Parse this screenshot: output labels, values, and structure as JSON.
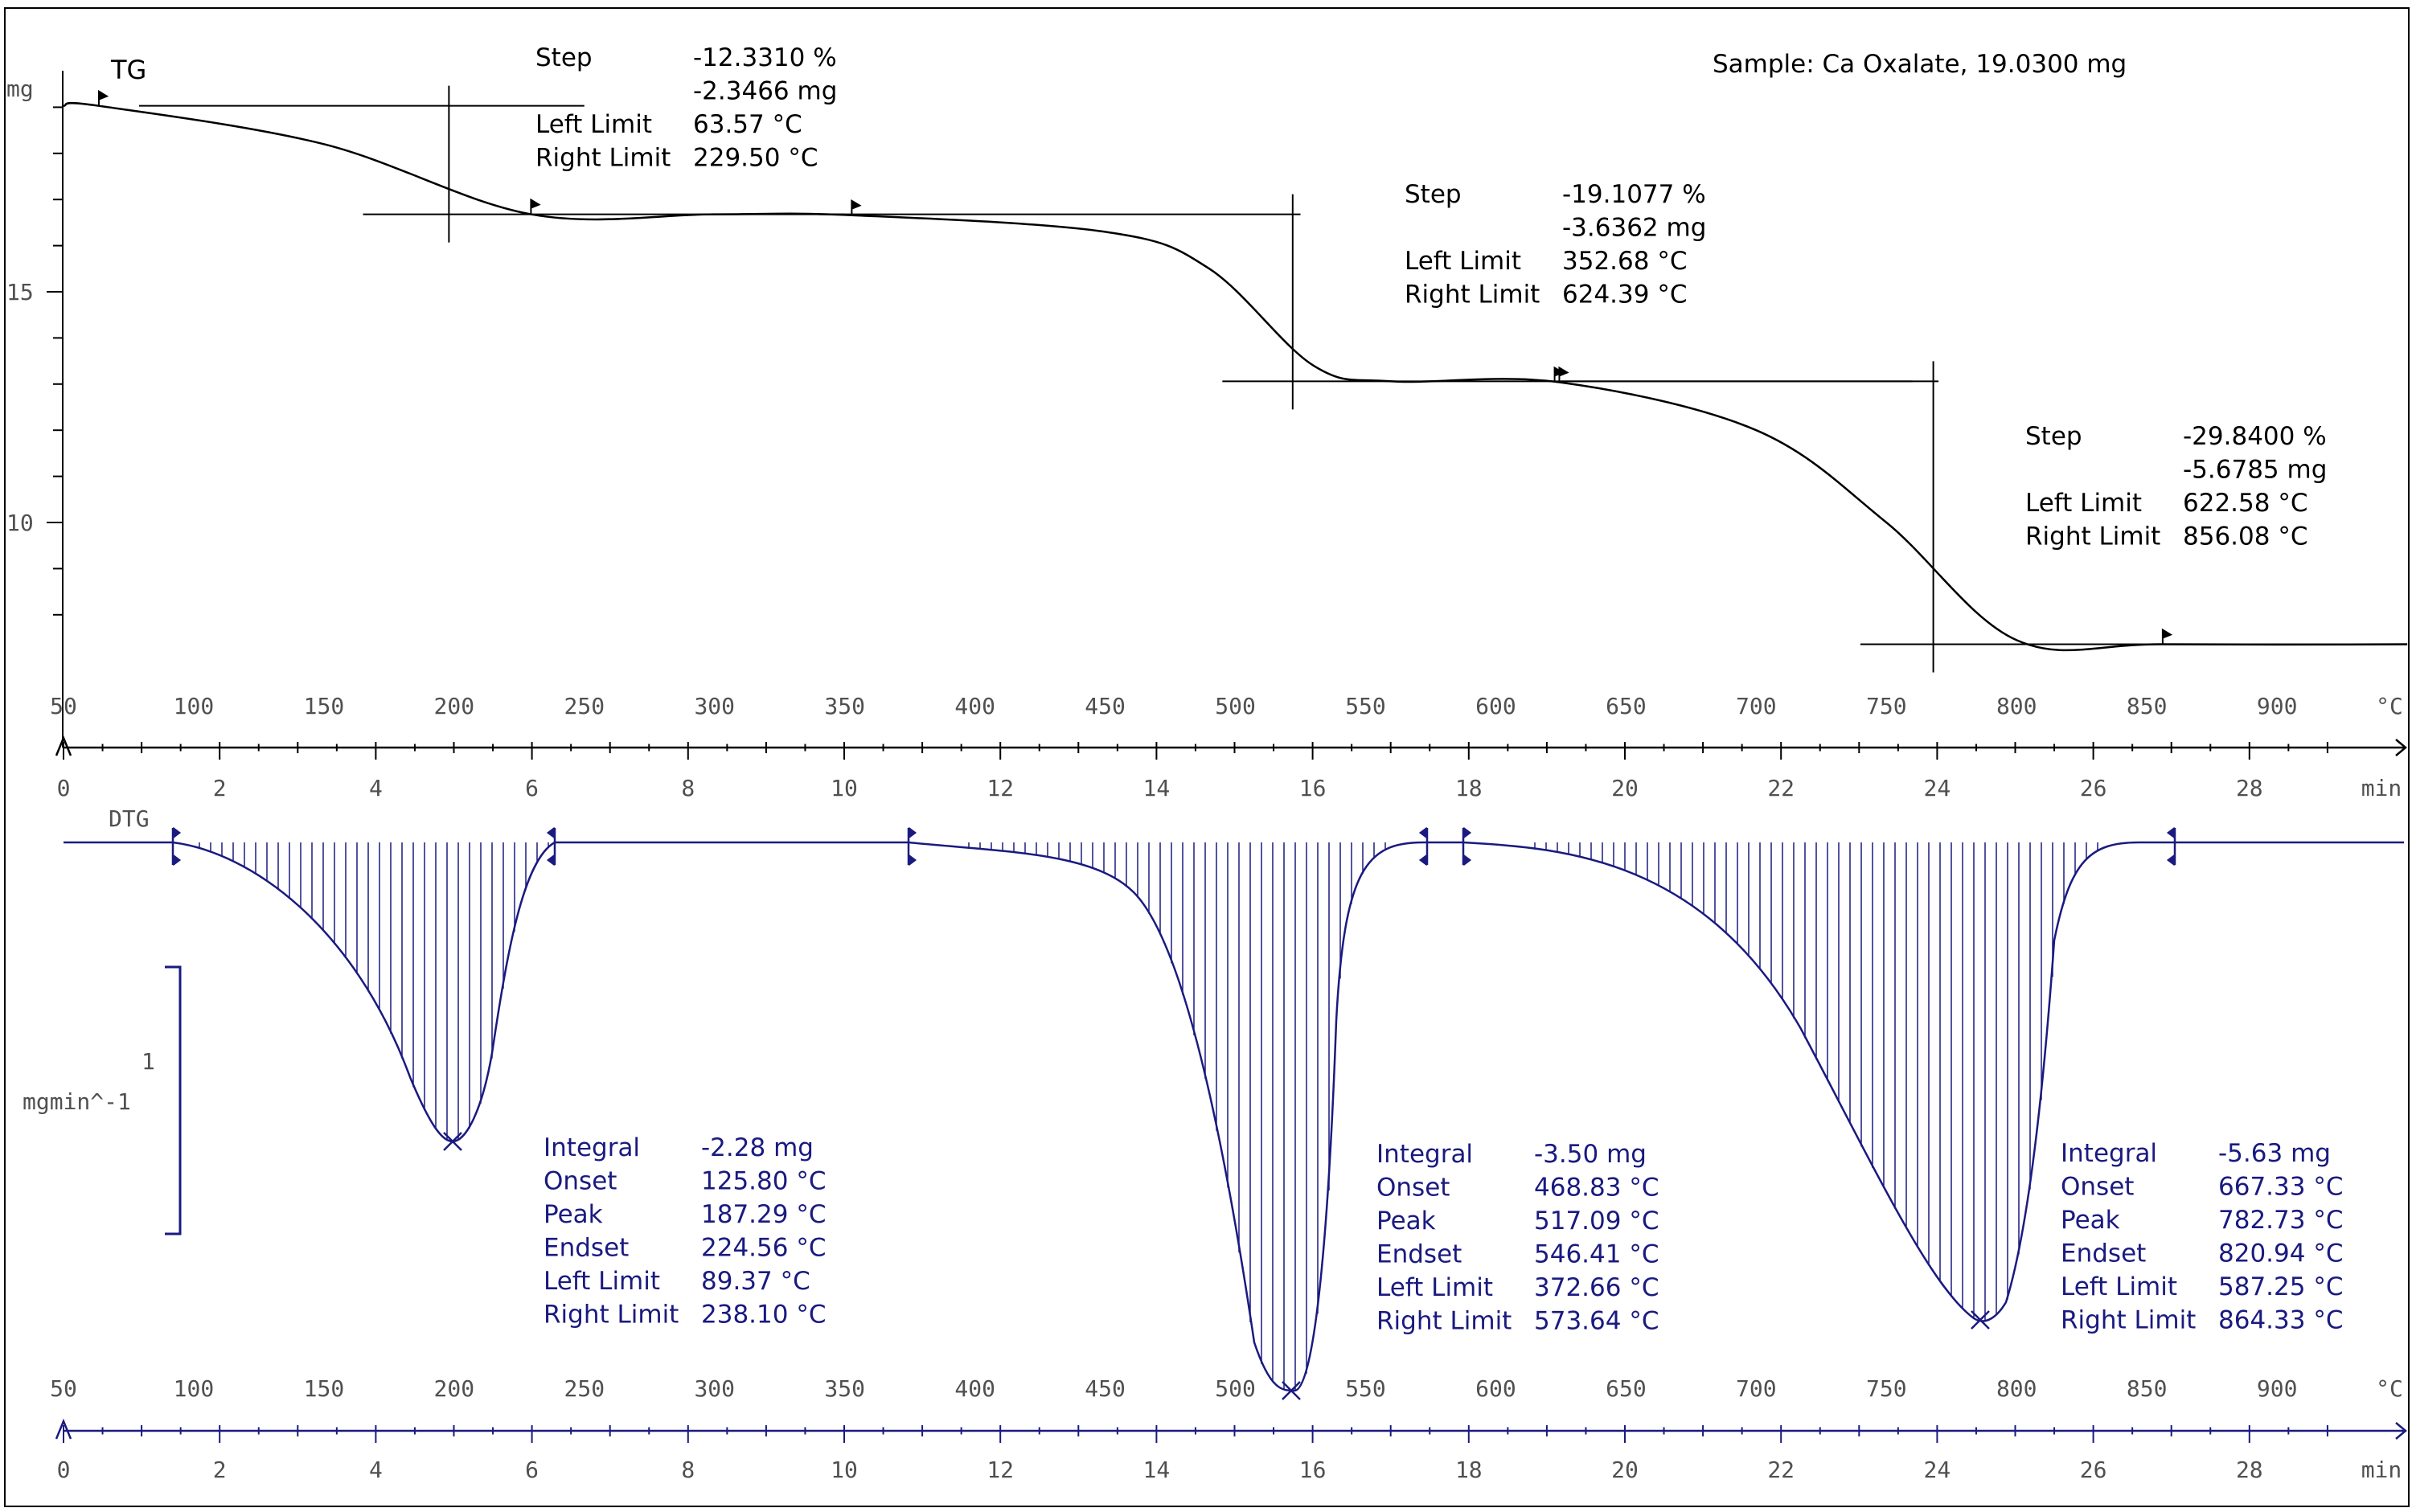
{
  "sample_label": "Sample: Ca Oxalate, 19.0300 mg",
  "tg": {
    "curve_label": "TG",
    "unit": "mg",
    "y_ticks": [
      "15",
      "10"
    ],
    "steps": [
      {
        "rows": [
          [
            "Step",
            "-12.3310 %"
          ],
          [
            "",
            "-2.3466 mg"
          ],
          [
            "Left Limit",
            "63.57 °C"
          ],
          [
            "Right Limit",
            "229.50 °C"
          ]
        ]
      },
      {
        "rows": [
          [
            "Step",
            "-19.1077 %"
          ],
          [
            "",
            "-3.6362 mg"
          ],
          [
            "Left Limit",
            "352.68 °C"
          ],
          [
            "Right Limit",
            "624.39 °C"
          ]
        ]
      },
      {
        "rows": [
          [
            "Step",
            "-29.8400 %"
          ],
          [
            "",
            "-5.6785 mg"
          ],
          [
            "Left Limit",
            "622.58 °C"
          ],
          [
            "Right Limit",
            "856.08 °C"
          ]
        ]
      }
    ]
  },
  "dtg": {
    "curve_label": "DTG",
    "scale_value": "1",
    "scale_unit": "mgmin^-1",
    "peaks": [
      {
        "rows": [
          [
            "Integral",
            "-2.28 mg"
          ],
          [
            "Onset",
            "125.80 °C"
          ],
          [
            "Peak",
            "187.29 °C"
          ],
          [
            "Endset",
            "224.56 °C"
          ],
          [
            "Left Limit",
            "89.37 °C"
          ],
          [
            "Right Limit",
            "238.10 °C"
          ]
        ]
      },
      {
        "rows": [
          [
            "Integral",
            "-3.50 mg"
          ],
          [
            "Onset",
            "468.83 °C"
          ],
          [
            "Peak",
            "517.09 °C"
          ],
          [
            "Endset",
            "546.41 °C"
          ],
          [
            "Left Limit",
            "372.66 °C"
          ],
          [
            "Right Limit",
            "573.64 °C"
          ]
        ]
      },
      {
        "rows": [
          [
            "Integral",
            "-5.63 mg"
          ],
          [
            "Onset",
            "667.33 °C"
          ],
          [
            "Peak",
            "782.73 °C"
          ],
          [
            "Endset",
            "820.94 °C"
          ],
          [
            "Left Limit",
            "587.25 °C"
          ],
          [
            "Right Limit",
            "864.33 °C"
          ]
        ]
      }
    ]
  },
  "axes": {
    "temp_ticks": [
      "50",
      "100",
      "150",
      "200",
      "250",
      "300",
      "350",
      "400",
      "450",
      "500",
      "550",
      "600",
      "650",
      "700",
      "750",
      "800",
      "850",
      "900"
    ],
    "temp_unit": "°C",
    "time_ticks": [
      "0",
      "2",
      "4",
      "6",
      "8",
      "10",
      "12",
      "14",
      "16",
      "18",
      "20",
      "22",
      "24",
      "26",
      "28"
    ],
    "time_unit": "min"
  },
  "colors": {
    "tg": "#000000",
    "dtg": "#1a1a80",
    "axis_label": "#505050"
  },
  "chart_data": [
    {
      "type": "line",
      "series": [
        {
          "name": "TG",
          "x": [
            50,
            63.57,
            150,
            229.5,
            300,
            352.68,
            450,
            490,
            530,
            560,
            624.39,
            700,
            750,
            800,
            856.08,
            950
          ],
          "y": [
            19.03,
            19.03,
            18.2,
            16.68,
            16.68,
            16.66,
            16.3,
            15.5,
            13.4,
            13.06,
            13.04,
            12.0,
            10.0,
            7.45,
            7.36,
            7.36
          ]
        }
      ],
      "x_unit": "°C",
      "xlim": [
        50,
        950
      ],
      "ylim": [
        7,
        20
      ]
    },
    {
      "type": "area",
      "series": [
        {
          "name": "DTG",
          "x": [
            50,
            89.37,
            125.8,
            160,
            187.29,
            210,
            224.56,
            238.1,
            372.66,
            430,
            468.83,
            500,
            517.09,
            546.41,
            573.64,
            587.25,
            667.33,
            720,
            782.73,
            820.94,
            864.33,
            950
          ],
          "y": [
            0,
            0,
            -0.35,
            -1.0,
            -1.13,
            -0.7,
            -0.15,
            0,
            0,
            -0.15,
            -0.5,
            -1.6,
            -2.1,
            -0.6,
            0,
            0,
            -0.5,
            -1.2,
            -1.8,
            -0.2,
            0,
            0
          ]
        }
      ],
      "x_unit": "°C",
      "xlim": [
        50,
        950
      ],
      "y_scale_label": "1 mgmin^-1"
    }
  ]
}
